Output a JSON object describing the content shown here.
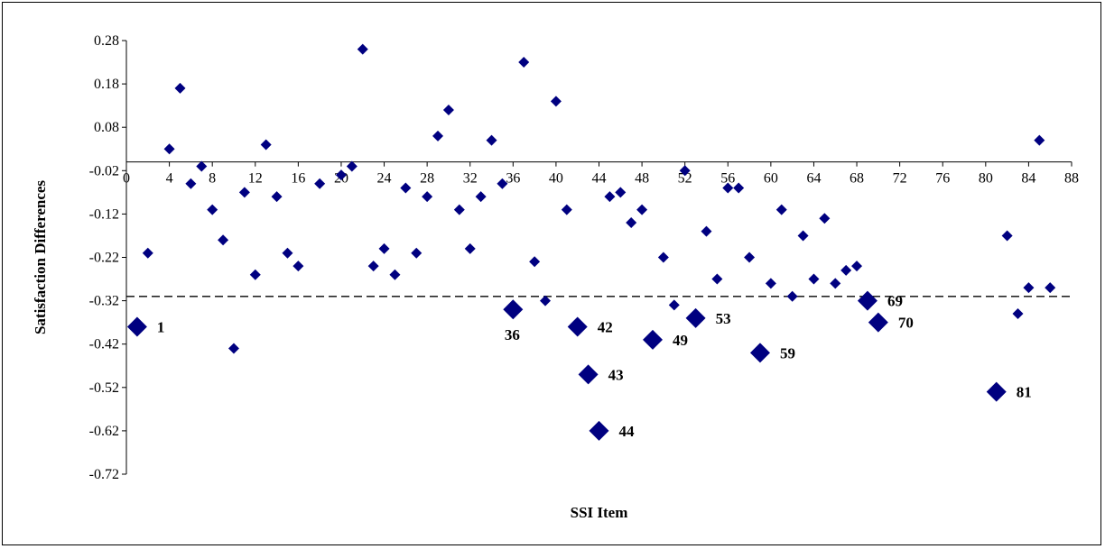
{
  "chart_data": {
    "type": "scatter",
    "title": "",
    "xlabel": "SSI Item",
    "ylabel": "Satisfaction Differences",
    "xlim": [
      0,
      88
    ],
    "ylim": [
      -0.72,
      0.28
    ],
    "x_ticks": [
      "0",
      "4",
      "8",
      "12",
      "16",
      "20",
      "24",
      "28",
      "32",
      "36",
      "40",
      "44",
      "48",
      "52",
      "56",
      "60",
      "64",
      "68",
      "72",
      "76",
      "80",
      "84",
      "88"
    ],
    "y_ticks": [
      "0.28",
      "0.18",
      "0.08",
      "-0.02",
      "-0.12",
      "-0.22",
      "-0.32",
      "-0.42",
      "-0.52",
      "-0.62",
      "-0.72"
    ],
    "x_axis_crosses_y": 0,
    "reference_line": {
      "y": -0.31,
      "style": "dashed"
    },
    "marker": "diamond",
    "marker_color": "#000080",
    "grid": false,
    "legend": "none",
    "series": [
      {
        "points": [
          [
            2,
            -0.21
          ],
          [
            4,
            0.03
          ],
          [
            5,
            0.17
          ],
          [
            6,
            -0.05
          ],
          [
            7,
            -0.01
          ],
          [
            8,
            -0.11
          ],
          [
            9,
            -0.18
          ],
          [
            10,
            -0.43
          ],
          [
            11,
            -0.07
          ],
          [
            12,
            -0.26
          ],
          [
            13,
            0.04
          ],
          [
            14,
            -0.08
          ],
          [
            15,
            -0.21
          ],
          [
            16,
            -0.24
          ],
          [
            18,
            -0.05
          ],
          [
            20,
            -0.03
          ],
          [
            21,
            -0.01
          ],
          [
            22,
            0.26
          ],
          [
            23,
            -0.24
          ],
          [
            24,
            -0.2
          ],
          [
            25,
            -0.26
          ],
          [
            26,
            -0.06
          ],
          [
            27,
            -0.21
          ],
          [
            28,
            -0.08
          ],
          [
            29,
            0.06
          ],
          [
            30,
            0.12
          ],
          [
            31,
            -0.11
          ],
          [
            32,
            -0.2
          ],
          [
            33,
            -0.08
          ],
          [
            34,
            0.05
          ],
          [
            35,
            -0.05
          ],
          [
            37,
            0.23
          ],
          [
            38,
            -0.23
          ],
          [
            39,
            -0.32
          ],
          [
            40,
            0.14
          ],
          [
            41,
            -0.11
          ],
          [
            45,
            -0.08
          ],
          [
            46,
            -0.07
          ],
          [
            47,
            -0.14
          ],
          [
            48,
            -0.11
          ],
          [
            50,
            -0.22
          ],
          [
            51,
            -0.33
          ],
          [
            52,
            -0.02
          ],
          [
            54,
            -0.16
          ],
          [
            55,
            -0.27
          ],
          [
            56,
            -0.06
          ],
          [
            57,
            -0.06
          ],
          [
            58,
            -0.22
          ],
          [
            60,
            -0.28
          ],
          [
            61,
            -0.11
          ],
          [
            62,
            -0.31
          ],
          [
            63,
            -0.17
          ],
          [
            64,
            -0.27
          ],
          [
            65,
            -0.13
          ],
          [
            66,
            -0.28
          ],
          [
            67,
            -0.25
          ],
          [
            68,
            -0.24
          ],
          [
            82,
            -0.17
          ],
          [
            83,
            -0.35
          ],
          [
            84,
            -0.29
          ],
          [
            85,
            0.05
          ],
          [
            86,
            -0.29
          ]
        ]
      },
      {
        "points": [
          [
            1,
            -0.38
          ],
          [
            36,
            -0.34
          ],
          [
            42,
            -0.38
          ],
          [
            43,
            -0.49
          ],
          [
            44,
            -0.62
          ],
          [
            49,
            -0.41
          ],
          [
            53,
            -0.36
          ],
          [
            59,
            -0.44
          ],
          [
            69,
            -0.32
          ],
          [
            70,
            -0.37
          ],
          [
            81,
            -0.53
          ]
        ],
        "labels": [
          "1",
          "36",
          "42",
          "43",
          "44",
          "49",
          "53",
          "59",
          "69",
          "70",
          "81"
        ]
      }
    ]
  }
}
